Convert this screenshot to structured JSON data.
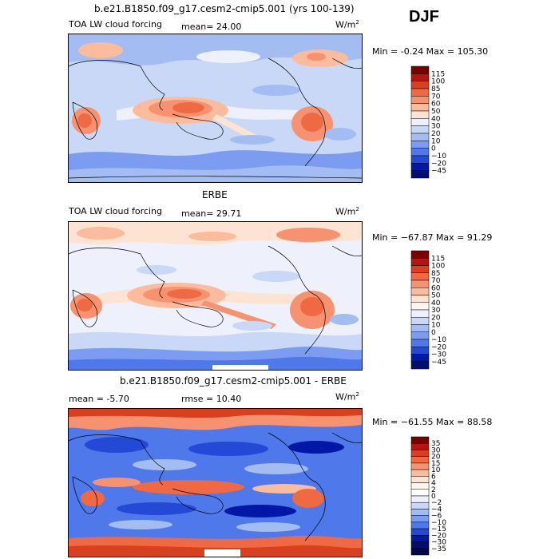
{
  "figure": {
    "season": "DJF"
  },
  "chart_data": [
    {
      "type": "heatmap",
      "title": "b.e21.B1850.f09_g17.cesm2-cmip5.001 (yrs 100-139)",
      "left_label": "TOA LW cloud forcing",
      "mean_text": "mean=  24.00",
      "units_base": "W/m",
      "units_exp": "2",
      "stats_text": "Min =  -0.24 Max = 105.30",
      "min": -0.24,
      "max": 105.3,
      "mean": 24.0,
      "colorbar": {
        "levels": [
          "115",
          "100",
          "85",
          "70",
          "60",
          "50",
          "40",
          "30",
          "20",
          "10",
          "0",
          "−10",
          "−20",
          "−45"
        ],
        "colors": [
          "#7a0000",
          "#b3150f",
          "#d9401f",
          "#ef6a43",
          "#f79270",
          "#fbbc9e",
          "#fde3d2",
          "#eef1fb",
          "#c8d8f6",
          "#a3bdf2",
          "#7b9cf0",
          "#4f78ea",
          "#2449d6",
          "#0018a6",
          "#000f6b"
        ]
      }
    },
    {
      "type": "heatmap",
      "title": "ERBE",
      "left_label": "TOA LW cloud forcing",
      "mean_text": "mean=  29.71",
      "units_base": "W/m",
      "units_exp": "2",
      "stats_text": "Min = −67.87 Max =  91.29",
      "min": -67.87,
      "max": 91.29,
      "mean": 29.71,
      "colorbar": {
        "levels": [
          "115",
          "100",
          "85",
          "70",
          "60",
          "50",
          "40",
          "30",
          "20",
          "10",
          "0",
          "−10",
          "−20",
          "−30",
          "−45"
        ],
        "colors": [
          "#7a0000",
          "#b3150f",
          "#d9401f",
          "#ef6a43",
          "#f79270",
          "#fbbc9e",
          "#fde3d2",
          "#fff5ee",
          "#eef1fb",
          "#c8d8f6",
          "#a3bdf2",
          "#7b9cf0",
          "#4f78ea",
          "#2449d6",
          "#0018a6",
          "#000f6b"
        ]
      }
    },
    {
      "type": "heatmap",
      "title": "b.e21.B1850.f09_g17.cesm2-cmip5.001 - ERBE",
      "left_label": "mean =  -5.70",
      "mean_text": "rmse =  10.40",
      "units_base": "W/m",
      "units_exp": "2",
      "stats_text": "Min = −61.55 Max =  88.58",
      "min": -61.55,
      "max": 88.58,
      "mean": -5.7,
      "rmse": 10.4,
      "colorbar": {
        "levels": [
          "35",
          "30",
          "20",
          "15",
          "10",
          "6",
          "4",
          "2",
          "0",
          "−2",
          "−4",
          "−6",
          "−10",
          "−15",
          "−20",
          "−30",
          "−35"
        ],
        "colors": [
          "#7a0000",
          "#b3150f",
          "#d9401f",
          "#ef6a43",
          "#f79270",
          "#fbbc9e",
          "#fde3d2",
          "#fff5ee",
          "#ffffff",
          "#eef1fb",
          "#c8d8f6",
          "#a3bdf2",
          "#7b9cf0",
          "#4f78ea",
          "#2449d6",
          "#0018a6",
          "#000f6b",
          "#000848"
        ]
      }
    }
  ]
}
